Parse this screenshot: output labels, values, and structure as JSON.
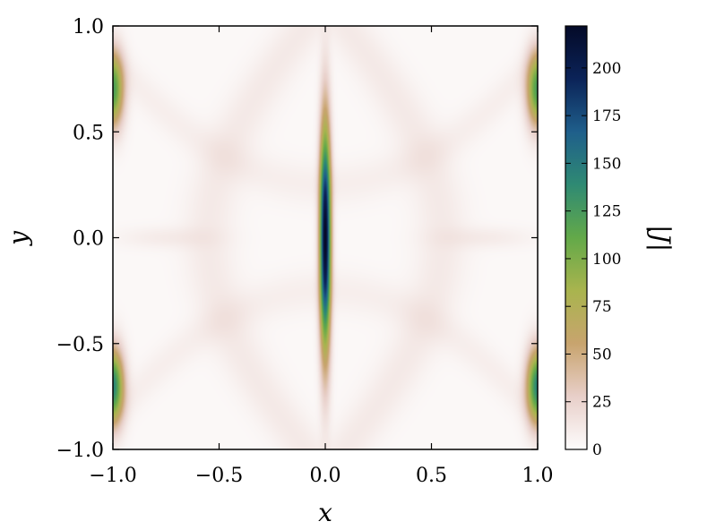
{
  "chart_data": {
    "type": "heatmap",
    "title": "",
    "xlabel": "x",
    "ylabel": "y",
    "xlim": [
      -1.0,
      1.0
    ],
    "ylim": [
      -1.0,
      1.0
    ],
    "x_ticks": [
      -1.0,
      -0.5,
      0.0,
      0.5,
      1.0
    ],
    "x_tick_labels": [
      "−1.0",
      "−0.5",
      "0.0",
      "0.5",
      "1.0"
    ],
    "y_ticks": [
      -1.0,
      -0.5,
      0.0,
      0.5,
      1.0
    ],
    "y_tick_labels": [
      "−1.0",
      "−0.5",
      "0.0",
      "0.5",
      "1.0"
    ],
    "colorbar": {
      "label": "|J|",
      "range": [
        0,
        222
      ],
      "ticks": [
        0,
        25,
        50,
        75,
        100,
        125,
        150,
        175,
        200
      ],
      "tick_labels": [
        "0",
        "25",
        "50",
        "75",
        "100",
        "125",
        "150",
        "175",
        "200"
      ],
      "colormap": [
        "#fdfcfc",
        "#e8cfc9",
        "#c8a46e",
        "#a9b44e",
        "#63a949",
        "#2f8a73",
        "#1f5f8b",
        "#0b2358",
        "#040a28"
      ]
    },
    "features": [
      {
        "description": "central current sheet",
        "x": 0.0,
        "y": 0.0,
        "sigma_x": 0.018,
        "sigma_y": 0.36,
        "peak": 222
      },
      {
        "description": "edge sheet",
        "x": -1.0,
        "y": 0.7,
        "sigma_x": 0.035,
        "sigma_y": 0.12,
        "peak": 120
      },
      {
        "description": "edge sheet",
        "x": -1.0,
        "y": -0.7,
        "sigma_x": 0.035,
        "sigma_y": 0.12,
        "peak": 140
      },
      {
        "description": "edge sheet",
        "x": 1.0,
        "y": 0.7,
        "sigma_x": 0.035,
        "sigma_y": 0.12,
        "peak": 120
      },
      {
        "description": "edge sheet",
        "x": 1.0,
        "y": -0.7,
        "sigma_x": 0.035,
        "sigma_y": 0.12,
        "peak": 140
      }
    ]
  }
}
